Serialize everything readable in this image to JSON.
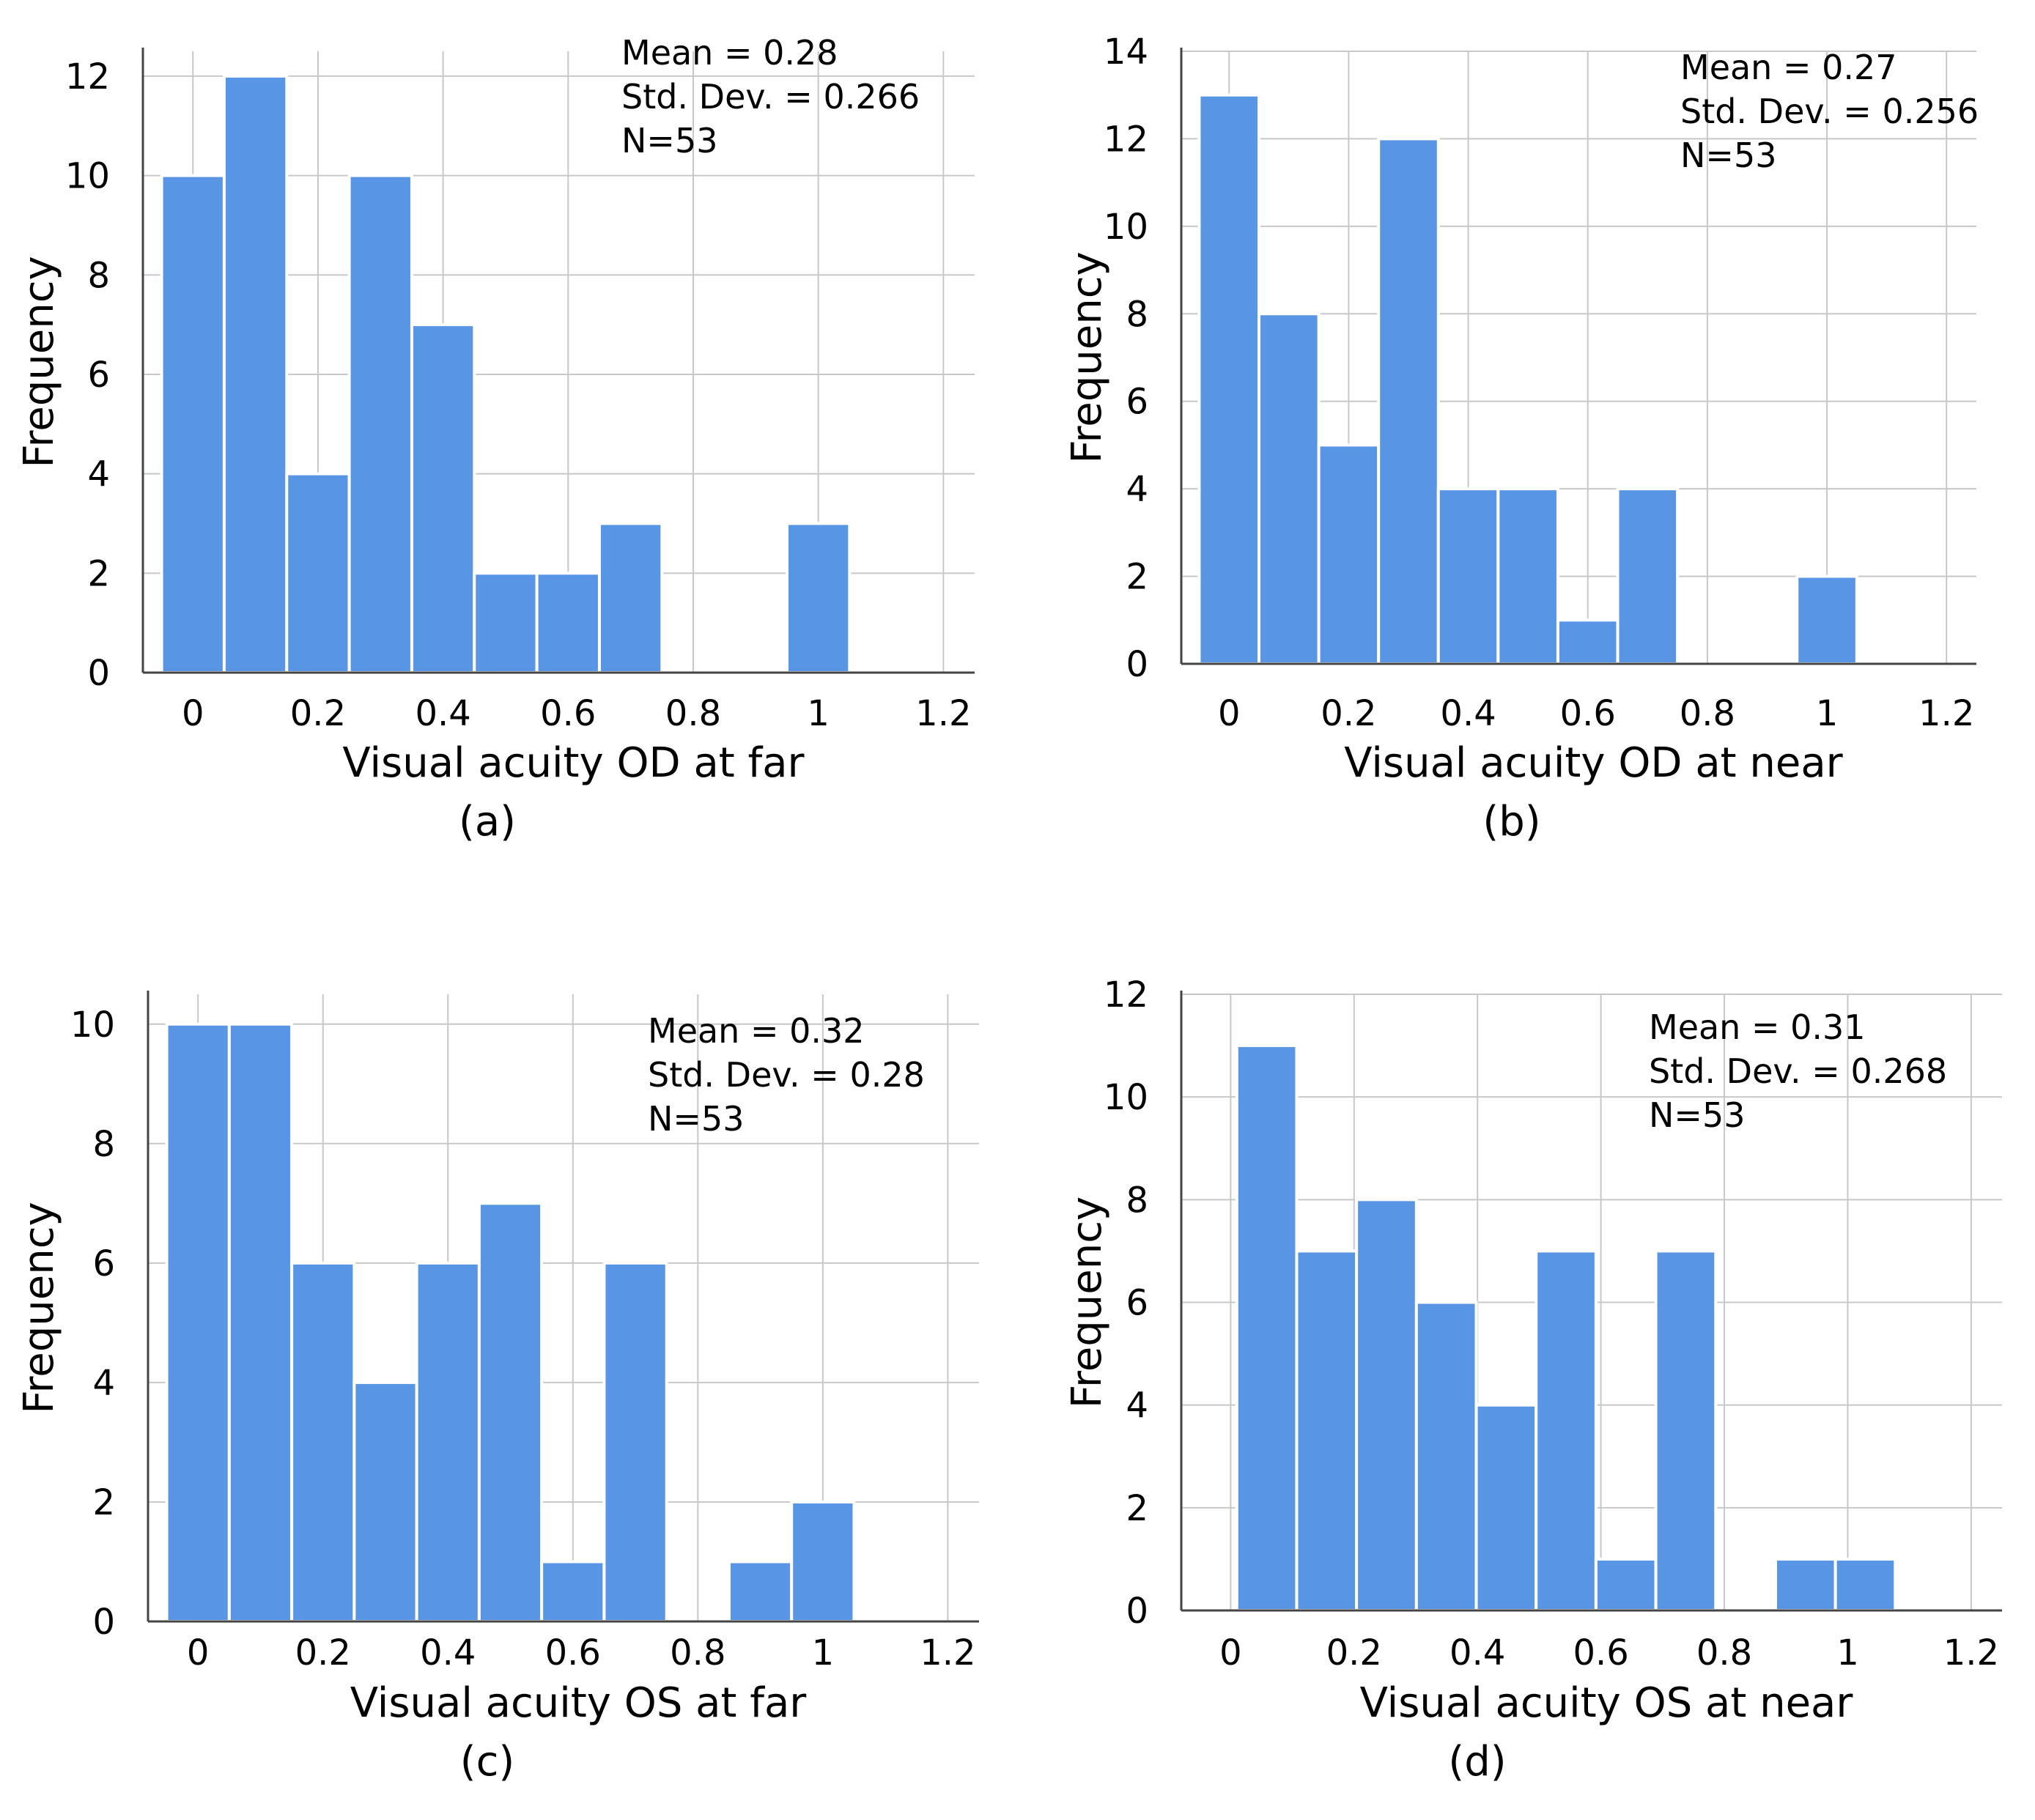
{
  "chart_data": [
    {
      "type": "bar",
      "panel_label": "(a)",
      "xlabel": "Visual acuity OD at far",
      "ylabel": "Frequency",
      "bin_width": 0.1,
      "bin_starts": [
        -0.05,
        0.05,
        0.15,
        0.25,
        0.35,
        0.45,
        0.55,
        0.65,
        0.75,
        0.85,
        0.95
      ],
      "values": [
        10,
        12,
        4,
        10,
        7,
        2,
        2,
        3,
        0,
        0,
        3
      ],
      "xlim": [
        -0.08,
        1.25
      ],
      "ylim": [
        0,
        12.5
      ],
      "x_ticks": [
        0,
        0.2,
        0.4,
        0.6,
        0.8,
        1,
        1.2
      ],
      "x_tick_labels": [
        "0",
        "0.2",
        "0.4",
        "0.6",
        "0.8",
        "1",
        "1.2"
      ],
      "y_ticks": [
        0,
        2,
        4,
        6,
        8,
        10,
        12
      ],
      "y_tick_labels": [
        "0",
        "2",
        "4",
        "6",
        "8",
        "10",
        "12"
      ],
      "stats": [
        "Mean = 0.28",
        "Std. Dev. = 0.266",
        "N=53"
      ]
    },
    {
      "type": "bar",
      "panel_label": "(b)",
      "xlabel": "Visual acuity OD at near",
      "ylabel": "Frequency",
      "bin_width": 0.1,
      "bin_starts": [
        -0.05,
        0.05,
        0.15,
        0.25,
        0.35,
        0.45,
        0.55,
        0.65,
        0.75,
        0.85,
        0.95
      ],
      "values": [
        13,
        8,
        5,
        12,
        4,
        4,
        1,
        4,
        0,
        0,
        2
      ],
      "xlim": [
        -0.08,
        1.25
      ],
      "ylim": [
        0,
        14
      ],
      "x_ticks": [
        0,
        0.2,
        0.4,
        0.6,
        0.8,
        1,
        1.2
      ],
      "x_tick_labels": [
        "0",
        "0.2",
        "0.4",
        "0.6",
        "0.8",
        "1",
        "1.2"
      ],
      "y_ticks": [
        0,
        2,
        4,
        6,
        8,
        10,
        12,
        14
      ],
      "y_tick_labels": [
        "0",
        "2",
        "4",
        "6",
        "8",
        "10",
        "12",
        "14"
      ],
      "stats": [
        "Mean = 0.27",
        "Std. Dev. = 0.256",
        "N=53"
      ]
    },
    {
      "type": "bar",
      "panel_label": "(c)",
      "xlabel": "Visual acuity OS at far",
      "ylabel": "Frequency",
      "bin_width": 0.1,
      "bin_starts": [
        -0.05,
        0.05,
        0.15,
        0.25,
        0.35,
        0.45,
        0.55,
        0.65,
        0.75,
        0.85,
        0.95
      ],
      "values": [
        10,
        10,
        6,
        4,
        6,
        7,
        1,
        6,
        0,
        1,
        2
      ],
      "xlim": [
        -0.08,
        1.25
      ],
      "ylim": [
        0,
        10.5
      ],
      "x_ticks": [
        0,
        0.2,
        0.4,
        0.6,
        0.8,
        1,
        1.2
      ],
      "x_tick_labels": [
        "0",
        "0.2",
        "0.4",
        "0.6",
        "0.8",
        "1",
        "1.2"
      ],
      "y_ticks": [
        0,
        2,
        4,
        6,
        8,
        10
      ],
      "y_tick_labels": [
        "0",
        "2",
        "4",
        "6",
        "8",
        "10"
      ],
      "stats": [
        "Mean = 0.32",
        "Std. Dev. = 0.28",
        "N=53"
      ]
    },
    {
      "type": "bar",
      "panel_label": "(d)",
      "xlabel": "Visual acuity OS at near",
      "ylabel": "Frequency",
      "bin_width": 0.097,
      "bin_starts": [
        0.01,
        0.107,
        0.204,
        0.301,
        0.398,
        0.495,
        0.592,
        0.689,
        0.786,
        0.883,
        0.98
      ],
      "values": [
        11,
        7,
        8,
        6,
        4,
        7,
        1,
        7,
        0,
        1,
        1
      ],
      "xlim": [
        -0.08,
        1.25
      ],
      "ylim": [
        0,
        12
      ],
      "x_ticks": [
        0,
        0.2,
        0.4,
        0.6,
        0.8,
        1,
        1.2
      ],
      "x_tick_labels": [
        "0",
        "0.2",
        "0.4",
        "0.6",
        "0.8",
        "1",
        "1.2"
      ],
      "y_ticks": [
        0,
        2,
        4,
        6,
        8,
        10,
        12
      ],
      "y_tick_labels": [
        "0",
        "2",
        "4",
        "6",
        "8",
        "10",
        "12"
      ],
      "stats": [
        "Mean = 0.31",
        "Std. Dev. = 0.268",
        "N=53"
      ]
    }
  ]
}
